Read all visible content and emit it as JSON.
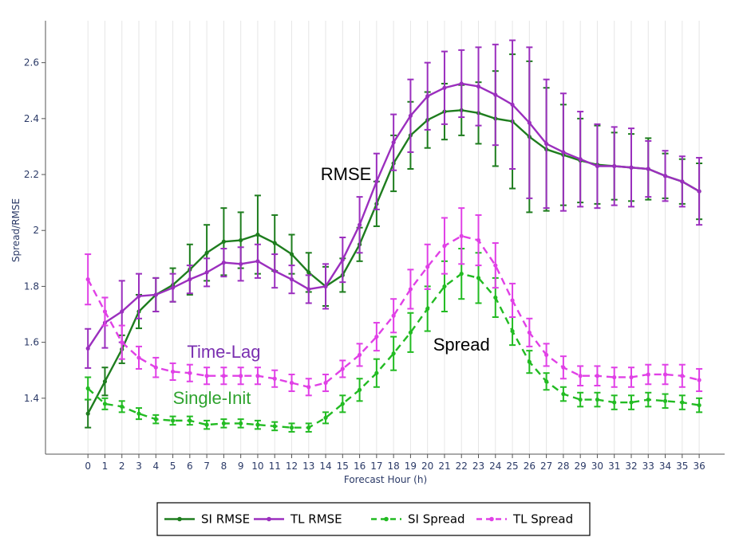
{
  "chart_data": {
    "type": "line",
    "xlabel": "Forecast Hour (h)",
    "ylabel": "Spread/RMSE",
    "xlim": [
      -2.5,
      37.5
    ],
    "ylim": [
      1.2,
      2.75
    ],
    "x": [
      0,
      1,
      2,
      3,
      4,
      5,
      6,
      7,
      8,
      9,
      10,
      11,
      12,
      13,
      14,
      15,
      16,
      17,
      18,
      19,
      20,
      21,
      22,
      23,
      24,
      25,
      26,
      27,
      28,
      29,
      30,
      31,
      32,
      33,
      34,
      35,
      36
    ],
    "y_ticks": [
      1.4,
      1.6,
      1.8,
      2.0,
      2.2,
      2.4,
      2.6
    ],
    "y_tick_labels": [
      "1.4",
      "1.6",
      "1.8",
      "2",
      "2.2",
      "2.4",
      "2.6"
    ],
    "grid": "vertical",
    "legend_position": "bottom-center",
    "series": [
      {
        "name": "SI RMSE",
        "color": "#1e7d1e",
        "style": "solid",
        "values": [
          1.345,
          1.46,
          1.575,
          1.71,
          1.77,
          1.805,
          1.86,
          1.92,
          1.96,
          1.965,
          1.985,
          1.955,
          1.915,
          1.85,
          1.8,
          1.84,
          1.95,
          2.095,
          2.24,
          2.34,
          2.395,
          2.425,
          2.43,
          2.42,
          2.4,
          2.39,
          2.335,
          2.29,
          2.27,
          2.25,
          2.235,
          2.23,
          2.225,
          2.22,
          2.195,
          2.175,
          2.14
        ],
        "errors": [
          0.05,
          0.05,
          0.05,
          0.06,
          0.06,
          0.06,
          0.09,
          0.1,
          0.12,
          0.1,
          0.14,
          0.1,
          0.07,
          0.07,
          0.07,
          0.06,
          0.06,
          0.08,
          0.1,
          0.12,
          0.1,
          0.1,
          0.09,
          0.11,
          0.17,
          0.24,
          0.27,
          0.22,
          0.18,
          0.15,
          0.14,
          0.12,
          0.12,
          0.11,
          0.08,
          0.08,
          0.1
        ]
      },
      {
        "name": "TL RMSE",
        "color": "#9b2fbe",
        "style": "solid",
        "values": [
          1.578,
          1.67,
          1.71,
          1.765,
          1.77,
          1.795,
          1.825,
          1.85,
          1.885,
          1.88,
          1.89,
          1.855,
          1.825,
          1.79,
          1.8,
          1.895,
          2.02,
          2.175,
          2.315,
          2.41,
          2.48,
          2.51,
          2.525,
          2.515,
          2.485,
          2.45,
          2.385,
          2.31,
          2.28,
          2.255,
          2.23,
          2.23,
          2.225,
          2.22,
          2.195,
          2.175,
          2.14
        ],
        "errors": [
          0.07,
          0.09,
          0.11,
          0.08,
          0.06,
          0.05,
          0.05,
          0.05,
          0.05,
          0.06,
          0.06,
          0.06,
          0.05,
          0.05,
          0.08,
          0.08,
          0.1,
          0.1,
          0.1,
          0.13,
          0.12,
          0.13,
          0.12,
          0.14,
          0.18,
          0.23,
          0.27,
          0.23,
          0.21,
          0.17,
          0.15,
          0.14,
          0.14,
          0.1,
          0.09,
          0.09,
          0.12
        ]
      },
      {
        "name": "SI Spread",
        "color": "#22bb22",
        "style": "dashed",
        "values": [
          1.435,
          1.38,
          1.37,
          1.345,
          1.325,
          1.32,
          1.32,
          1.305,
          1.31,
          1.31,
          1.305,
          1.3,
          1.295,
          1.295,
          1.33,
          1.38,
          1.43,
          1.49,
          1.56,
          1.635,
          1.72,
          1.8,
          1.845,
          1.83,
          1.76,
          1.64,
          1.53,
          1.46,
          1.415,
          1.395,
          1.395,
          1.385,
          1.385,
          1.395,
          1.39,
          1.385,
          1.375
        ],
        "errors": [
          0.04,
          0.02,
          0.02,
          0.02,
          0.015,
          0.015,
          0.015,
          0.015,
          0.015,
          0.015,
          0.015,
          0.015,
          0.015,
          0.015,
          0.02,
          0.03,
          0.04,
          0.05,
          0.06,
          0.07,
          0.08,
          0.09,
          0.09,
          0.09,
          0.07,
          0.05,
          0.04,
          0.03,
          0.025,
          0.025,
          0.025,
          0.025,
          0.025,
          0.025,
          0.025,
          0.025,
          0.025
        ]
      },
      {
        "name": "TL Spread",
        "color": "#e040e6",
        "style": "dashed",
        "values": [
          1.825,
          1.71,
          1.6,
          1.545,
          1.51,
          1.495,
          1.49,
          1.48,
          1.48,
          1.48,
          1.48,
          1.47,
          1.455,
          1.44,
          1.455,
          1.505,
          1.555,
          1.62,
          1.695,
          1.79,
          1.87,
          1.945,
          1.98,
          1.965,
          1.875,
          1.75,
          1.635,
          1.555,
          1.51,
          1.48,
          1.48,
          1.475,
          1.475,
          1.485,
          1.485,
          1.48,
          1.465
        ],
        "errors": [
          0.09,
          0.05,
          0.06,
          0.04,
          0.035,
          0.03,
          0.03,
          0.03,
          0.03,
          0.03,
          0.03,
          0.03,
          0.03,
          0.03,
          0.03,
          0.03,
          0.04,
          0.05,
          0.06,
          0.07,
          0.08,
          0.1,
          0.1,
          0.09,
          0.08,
          0.06,
          0.05,
          0.04,
          0.04,
          0.035,
          0.035,
          0.035,
          0.035,
          0.035,
          0.035,
          0.04,
          0.04
        ]
      }
    ],
    "annotations": [
      {
        "text": "RMSE",
        "x": 15.2,
        "y": 2.18,
        "color": "#000000"
      },
      {
        "text": "Spread",
        "x": 22,
        "y": 1.57,
        "color": "#000000"
      },
      {
        "text": "Time-Lag",
        "x": 8,
        "y": 1.545,
        "color": "#7a2fb0"
      },
      {
        "text": "Single-Init",
        "x": 7.3,
        "y": 1.38,
        "color": "#2fa32f"
      }
    ]
  }
}
